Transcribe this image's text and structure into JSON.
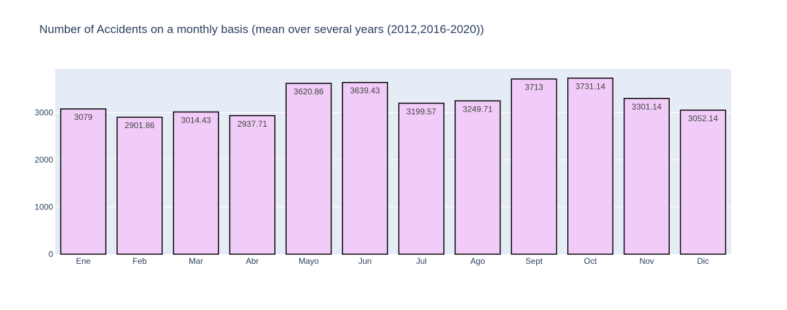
{
  "chart_data": {
    "type": "bar",
    "title": "Number of Accidents on a monthly basis (mean over several years (2012,2016-2020))",
    "xlabel": "",
    "ylabel": "",
    "categories": [
      "Ene",
      "Feb",
      "Mar",
      "Abr",
      "Mayo",
      "Jun",
      "Jul",
      "Ago",
      "Sept",
      "Oct",
      "Nov",
      "Dic"
    ],
    "values": [
      3079,
      2901.86,
      3014.43,
      2937.71,
      3620.86,
      3639.43,
      3199.57,
      3249.71,
      3713,
      3731.14,
      3301.14,
      3052.14
    ],
    "data_labels": [
      "3079",
      "2901.86",
      "3014.43",
      "2937.71",
      "3620.86",
      "3639.43",
      "3199.57",
      "3249.71",
      "3713",
      "3731.14",
      "3301.14",
      "3052.14"
    ],
    "ylim": [
      0,
      3927.5
    ],
    "yticks": [
      0,
      1000,
      2000,
      3000
    ],
    "ytick_labels": [
      "0",
      "1000",
      "2000",
      "3000"
    ],
    "grid": true,
    "legend": "none",
    "colors": {
      "bar_fill": "#f1ccf8",
      "bar_stroke": "#000000",
      "plot_background": "#e5ecf6",
      "grid": "#ffffff",
      "text": "#2a3f5f"
    }
  }
}
